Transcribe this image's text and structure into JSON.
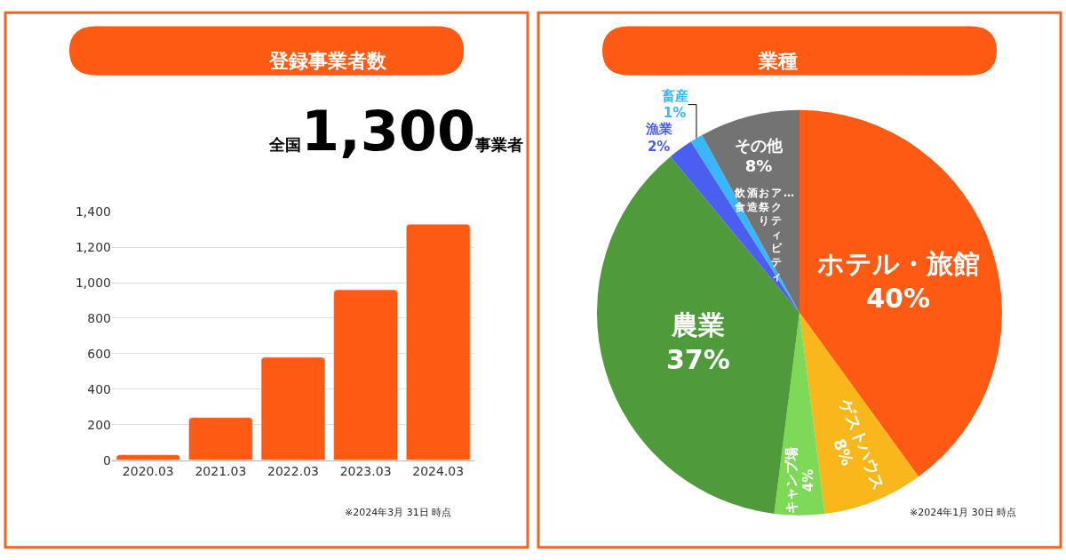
{
  "chart_data": [
    {
      "type": "bar",
      "title": "登録事業者数",
      "subtitle": "全国1,300事業者",
      "categories": [
        "2020.03",
        "2021.03",
        "2022.03",
        "2023.03",
        "2024.03"
      ],
      "values": [
        30,
        240,
        580,
        960,
        1330
      ],
      "color": "#ff5a14",
      "ylim": [
        0,
        1400
      ],
      "yticks": [
        0,
        200,
        400,
        600,
        800,
        {
          "value": 1000,
          "label": "1,000"
        },
        {
          "value": 1200,
          "label": "1,200"
        },
        {
          "value": 1400,
          "label": "1,400"
        }
      ],
      "grid": "y",
      "annotations": [
        "※2024年3月 31日 時点"
      ]
    },
    {
      "type": "pie",
      "title": "業種",
      "categories": [
        "ホテル・旅館",
        "ゲストハウス",
        "キャンプ場",
        "農業",
        "漁業",
        "畜産",
        "その他"
      ],
      "values": [
        40,
        8,
        4,
        37,
        2,
        1,
        8
      ],
      "colors": [
        "#ff5a14",
        "#f9b71b",
        "#7ed957",
        "#4f9a3a",
        "#4a5ef0",
        "#38b6ff",
        "#737373"
      ],
      "value_labels": [
        "40%",
        "8%",
        "4%",
        "37%",
        "2%",
        "1%",
        "8%"
      ],
      "annotations": [
        "飲食",
        "酒造",
        "お祭り",
        "アクティビティ",
        "…",
        "※2024年1月 30日 時点"
      ]
    }
  ]
}
